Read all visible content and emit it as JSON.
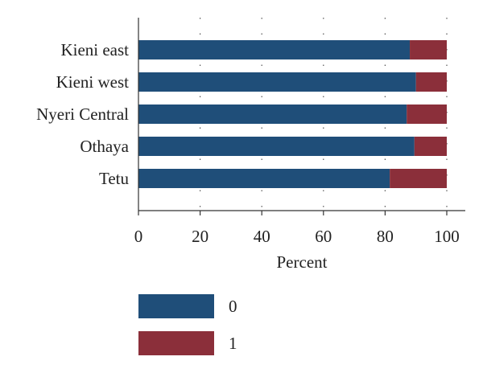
{
  "chart_data": {
    "type": "bar",
    "orientation": "horizontal",
    "stacked": true,
    "categories": [
      "Kieni east",
      "Kieni west",
      "Nyeri Central",
      "Othaya",
      "Tetu"
    ],
    "series": [
      {
        "name": "0",
        "values": [
          88,
          90,
          87,
          89.5,
          81.5
        ],
        "color": "#1f4e79"
      },
      {
        "name": "1",
        "values": [
          12,
          10,
          13,
          10.5,
          18.5
        ],
        "color": "#8b2f3a"
      }
    ],
    "xlabel": "Percent",
    "ylabel": "",
    "xlim": [
      0,
      105
    ],
    "xticks": [
      "0",
      "20",
      "40",
      "60",
      "80",
      "100"
    ],
    "tick_values": [
      0,
      20,
      40,
      60,
      80,
      100
    ],
    "grid": "vertical dotted",
    "legend": "bottom-left"
  }
}
